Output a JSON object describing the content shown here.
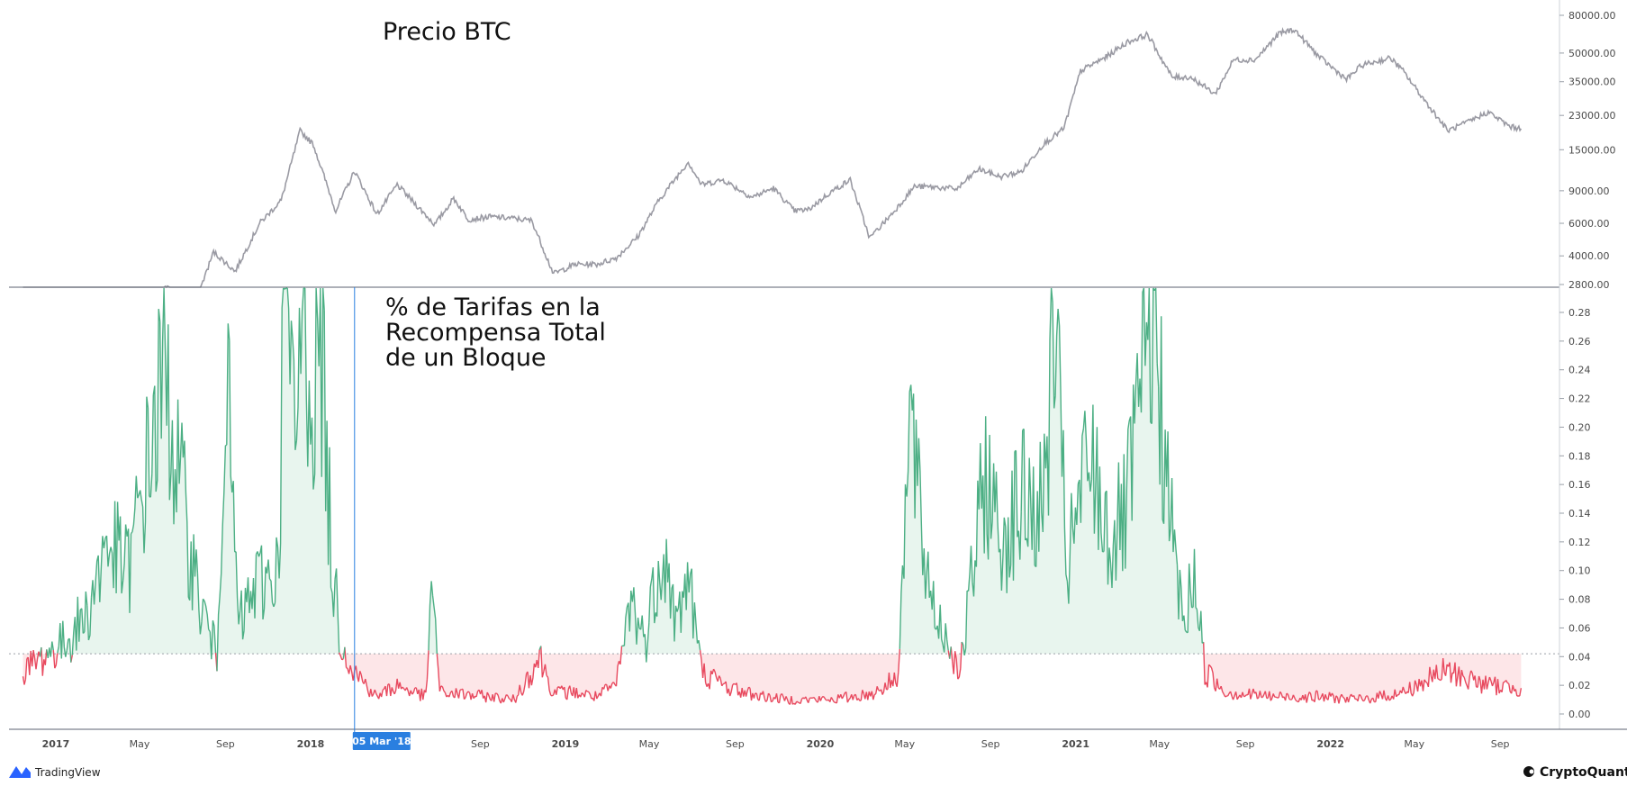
{
  "brand": {
    "tradingview": "TradingView",
    "cryptoquant": "CryptoQuant"
  },
  "colors": {
    "price_line": "#9a9aa3",
    "above": "#4caf84",
    "below": "#e84a5f",
    "above_fill": "#e8f5ee",
    "below_fill": "#fde6e8",
    "crosshair": "#2a7fe0"
  },
  "crosshair_label": "05 Mar '18",
  "x_axis_ticks": [
    "2017",
    "May",
    "Sep",
    "2018",
    "May",
    "Sep",
    "2019",
    "May",
    "Sep",
    "2020",
    "May",
    "Sep",
    "2021",
    "May",
    "Sep",
    "2022",
    "May",
    "Sep"
  ],
  "chart_data": [
    {
      "type": "line",
      "title": "Precio BTC",
      "scale": "log",
      "y_ticks": [
        "80000.00",
        "50000.00",
        "35000.00",
        "23000.00",
        "15000.00",
        "9000.00",
        "6000.00",
        "4000.00",
        "2800.00"
      ],
      "series": [
        {
          "values": [
            [
              "2016-11-15",
              2000
            ],
            [
              "2017-01-01",
              1000
            ],
            [
              "2017-03-01",
              1100
            ],
            [
              "2017-05-01",
              1500
            ],
            [
              "2017-06-10",
              2800
            ],
            [
              "2017-07-15",
              2000
            ],
            [
              "2017-08-15",
              4200
            ],
            [
              "2017-09-15",
              3300
            ],
            [
              "2017-10-20",
              6000
            ],
            [
              "2017-11-20",
              8000
            ],
            [
              "2017-12-17",
              19000
            ],
            [
              "2018-01-05",
              16000
            ],
            [
              "2018-02-06",
              7000
            ],
            [
              "2018-03-05",
              11500
            ],
            [
              "2018-04-06",
              6700
            ],
            [
              "2018-05-05",
              9700
            ],
            [
              "2018-06-28",
              5900
            ],
            [
              "2018-07-25",
              8200
            ],
            [
              "2018-08-15",
              6300
            ],
            [
              "2018-09-15",
              6500
            ],
            [
              "2018-10-15",
              6400
            ],
            [
              "2018-11-14",
              6200
            ],
            [
              "2018-12-15",
              3200
            ],
            [
              "2019-01-15",
              3600
            ],
            [
              "2019-02-15",
              3600
            ],
            [
              "2019-03-15",
              3900
            ],
            [
              "2019-04-15",
              5100
            ],
            [
              "2019-05-15",
              8000
            ],
            [
              "2019-06-26",
              12900
            ],
            [
              "2019-07-15",
              9700
            ],
            [
              "2019-08-15",
              10300
            ],
            [
              "2019-09-25",
              8300
            ],
            [
              "2019-10-26",
              9300
            ],
            [
              "2019-11-25",
              7000
            ],
            [
              "2019-12-15",
              7100
            ],
            [
              "2020-01-15",
              8800
            ],
            [
              "2020-02-13",
              10300
            ],
            [
              "2020-03-12",
              5000
            ],
            [
              "2020-04-15",
              6900
            ],
            [
              "2020-05-15",
              9500
            ],
            [
              "2020-06-15",
              9400
            ],
            [
              "2020-07-15",
              9200
            ],
            [
              "2020-08-15",
              11800
            ],
            [
              "2020-09-15",
              10700
            ],
            [
              "2020-10-15",
              11400
            ],
            [
              "2020-11-15",
              16000
            ],
            [
              "2020-12-15",
              19500
            ],
            [
              "2021-01-08",
              40000
            ],
            [
              "2021-02-15",
              48000
            ],
            [
              "2021-03-15",
              57000
            ],
            [
              "2021-04-14",
              63000
            ],
            [
              "2021-05-19",
              37000
            ],
            [
              "2021-06-15",
              37000
            ],
            [
              "2021-07-20",
              30000
            ],
            [
              "2021-08-15",
              46000
            ],
            [
              "2021-09-15",
              46000
            ],
            [
              "2021-10-20",
              64000
            ],
            [
              "2021-11-10",
              67000
            ],
            [
              "2021-12-15",
              48000
            ],
            [
              "2022-01-24",
              36000
            ],
            [
              "2022-02-15",
              43000
            ],
            [
              "2022-03-28",
              47000
            ],
            [
              "2022-04-15",
              40000
            ],
            [
              "2022-05-12",
              29000
            ],
            [
              "2022-06-18",
              19000
            ],
            [
              "2022-07-15",
              21000
            ],
            [
              "2022-08-15",
              24000
            ],
            [
              "2022-09-15",
              20000
            ],
            [
              "2022-10-01",
              19500
            ]
          ]
        }
      ]
    },
    {
      "type": "area",
      "title": "% de Tarifas en la Recompensa Total de un Bloque",
      "title_lines": [
        "% de Tarifas en la",
        "Recompensa Total",
        "de un Bloque"
      ],
      "threshold": 0.042,
      "ylim": [
        -0.01,
        0.295
      ],
      "y_ticks": [
        "0.28",
        "0.26",
        "0.24",
        "0.22",
        "0.20",
        "0.18",
        "0.16",
        "0.14",
        "0.12",
        "0.10",
        "0.08",
        "0.06",
        "0.04",
        "0.02",
        "0.00"
      ],
      "series": [
        {
          "values": [
            [
              "2016-11-15",
              0.03
            ],
            [
              "2016-12-15",
              0.04
            ],
            [
              "2017-01-15",
              0.05
            ],
            [
              "2017-02-15",
              0.07
            ],
            [
              "2017-03-15",
              0.12
            ],
            [
              "2017-04-15",
              0.1
            ],
            [
              "2017-05-15",
              0.18
            ],
            [
              "2017-06-05",
              0.24
            ],
            [
              "2017-06-25",
              0.17
            ],
            [
              "2017-07-25",
              0.08
            ],
            [
              "2017-08-20",
              0.04
            ],
            [
              "2017-09-01",
              0.25
            ],
            [
              "2017-09-20",
              0.06
            ],
            [
              "2017-10-15",
              0.09
            ],
            [
              "2017-11-15",
              0.1
            ],
            [
              "2017-11-25",
              0.3
            ],
            [
              "2017-12-10",
              0.18
            ],
            [
              "2017-12-20",
              0.29
            ],
            [
              "2018-01-05",
              0.22
            ],
            [
              "2018-01-15",
              0.27
            ],
            [
              "2018-02-01",
              0.1
            ],
            [
              "2018-02-15",
              0.05
            ],
            [
              "2018-03-05",
              0.03
            ],
            [
              "2018-04-05",
              0.012
            ],
            [
              "2018-05-05",
              0.02
            ],
            [
              "2018-06-15",
              0.012
            ],
            [
              "2018-06-25",
              0.094
            ],
            [
              "2018-07-05",
              0.015
            ],
            [
              "2018-09-15",
              0.012
            ],
            [
              "2018-10-20",
              0.01
            ],
            [
              "2018-11-25",
              0.04
            ],
            [
              "2018-12-15",
              0.015
            ],
            [
              "2019-01-15",
              0.015
            ],
            [
              "2019-02-15",
              0.012
            ],
            [
              "2019-03-15",
              0.02
            ],
            [
              "2019-04-05",
              0.08
            ],
            [
              "2019-04-25",
              0.05
            ],
            [
              "2019-05-20",
              0.12
            ],
            [
              "2019-06-10",
              0.06
            ],
            [
              "2019-06-25",
              0.1
            ],
            [
              "2019-07-15",
              0.03
            ],
            [
              "2019-08-15",
              0.02
            ],
            [
              "2019-09-15",
              0.015
            ],
            [
              "2019-10-15",
              0.012
            ],
            [
              "2019-11-15",
              0.01
            ],
            [
              "2019-12-15",
              0.01
            ],
            [
              "2020-01-15",
              0.01
            ],
            [
              "2020-02-15",
              0.012
            ],
            [
              "2020-03-15",
              0.014
            ],
            [
              "2020-04-20",
              0.025
            ],
            [
              "2020-05-10",
              0.21
            ],
            [
              "2020-05-25",
              0.12
            ],
            [
              "2020-06-15",
              0.07
            ],
            [
              "2020-07-20",
              0.03
            ],
            [
              "2020-08-25",
              0.17
            ],
            [
              "2020-09-15",
              0.12
            ],
            [
              "2020-10-15",
              0.15
            ],
            [
              "2020-11-15",
              0.14
            ],
            [
              "2020-12-01",
              0.27
            ],
            [
              "2020-12-20",
              0.1
            ],
            [
              "2021-01-20",
              0.18
            ],
            [
              "2021-02-20",
              0.12
            ],
            [
              "2021-03-15",
              0.14
            ],
            [
              "2021-04-22",
              0.29
            ],
            [
              "2021-05-15",
              0.14
            ],
            [
              "2021-06-05",
              0.06
            ],
            [
              "2021-06-20",
              0.1
            ],
            [
              "2021-07-05",
              0.03
            ],
            [
              "2021-08-05",
              0.015
            ],
            [
              "2021-10-15",
              0.012
            ],
            [
              "2021-12-15",
              0.012
            ],
            [
              "2022-02-15",
              0.01
            ],
            [
              "2022-04-15",
              0.015
            ],
            [
              "2022-06-15",
              0.03
            ],
            [
              "2022-08-15",
              0.02
            ],
            [
              "2022-10-01",
              0.018
            ]
          ]
        }
      ]
    }
  ]
}
